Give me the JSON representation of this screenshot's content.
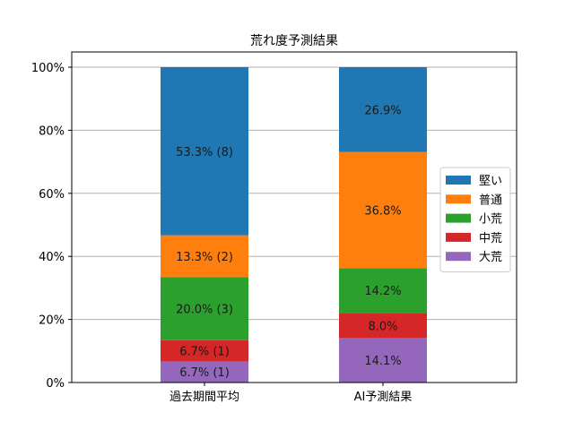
{
  "chart_data": {
    "type": "bar",
    "stacked": true,
    "title": "荒れ度予測結果",
    "xlabel": "",
    "ylabel": "",
    "categories": [
      "過去期間平均",
      "AI予測結果"
    ],
    "ylim": [
      0,
      100
    ],
    "yticks": [
      0,
      20,
      40,
      60,
      80,
      100
    ],
    "ytick_labels": [
      "0%",
      "20%",
      "40%",
      "60%",
      "80%",
      "100%"
    ],
    "grid": "horizontal",
    "legend_position": "center-right",
    "series": [
      {
        "name": "大荒",
        "color": "#9467bd",
        "values": [
          6.7,
          14.1
        ],
        "labels": [
          "6.7% (1)",
          "14.1%"
        ]
      },
      {
        "name": "中荒",
        "color": "#d62728",
        "values": [
          6.7,
          8.0
        ],
        "labels": [
          "6.7% (1)",
          "8.0%"
        ]
      },
      {
        "name": "小荒",
        "color": "#2ca02c",
        "values": [
          20.0,
          14.2
        ],
        "labels": [
          "20.0% (3)",
          "14.2%"
        ]
      },
      {
        "name": "普通",
        "color": "#ff7f0e",
        "values": [
          13.3,
          36.8
        ],
        "labels": [
          "13.3% (2)",
          "36.8%"
        ]
      },
      {
        "name": "堅い",
        "color": "#1f77b4",
        "values": [
          53.3,
          26.9
        ],
        "labels": [
          "53.3% (8)",
          "26.9%"
        ]
      }
    ],
    "legend_order": [
      "堅い",
      "普通",
      "小荒",
      "中荒",
      "大荒"
    ]
  }
}
